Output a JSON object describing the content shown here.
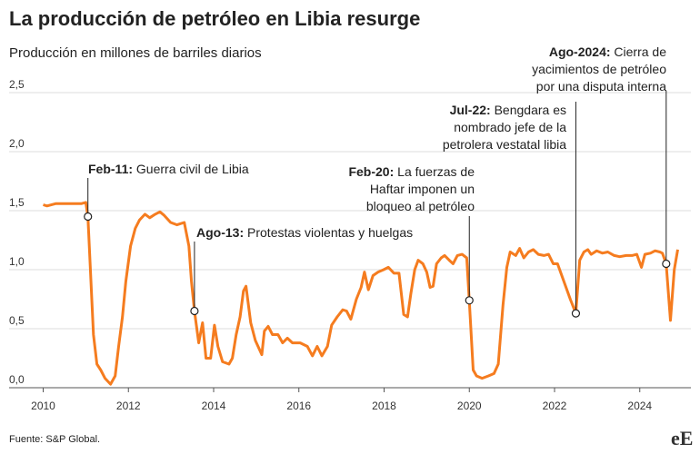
{
  "chart_data": {
    "type": "line",
    "title": "La producción de petróleo en Libia resurge",
    "subtitle": "Producción en millones de barriles diarios",
    "source": "Fuente: S&P Global.",
    "logo": "eE",
    "xlim": [
      2009.2,
      2025.2
    ],
    "xticks": [
      2010,
      2012,
      2014,
      2016,
      2018,
      2020,
      2022,
      2024
    ],
    "ylim": [
      0,
      2.5
    ],
    "yticks": [
      {
        "value": 0,
        "label": "0,0"
      },
      {
        "value": 0.5,
        "label": "0,5"
      },
      {
        "value": 1,
        "label": "1,0"
      },
      {
        "value": 1.5,
        "label": "1,5"
      },
      {
        "value": 2,
        "label": "2,0"
      },
      {
        "value": 2.5,
        "label": "2,5"
      }
    ],
    "grid": true,
    "series": [
      {
        "color": "#f57c1f",
        "x": [
          2010.0,
          2010.09,
          2010.3,
          2010.6,
          2010.9,
          2011.0,
          2011.05,
          2011.18,
          2011.26,
          2011.35,
          2011.45,
          2011.58,
          2011.69,
          2011.77,
          2011.86,
          2011.94,
          2012.05,
          2012.16,
          2012.26,
          2012.39,
          2012.5,
          2012.63,
          2012.74,
          2012.84,
          2012.99,
          2013.14,
          2013.31,
          2013.42,
          2013.48,
          2013.55,
          2013.65,
          2013.74,
          2013.82,
          2013.93,
          2014.02,
          2014.1,
          2014.21,
          2014.36,
          2014.44,
          2014.53,
          2014.62,
          2014.7,
          2014.76,
          2014.87,
          2014.98,
          2015.13,
          2015.19,
          2015.28,
          2015.38,
          2015.51,
          2015.62,
          2015.73,
          2015.85,
          2016.03,
          2016.2,
          2016.32,
          2016.43,
          2016.54,
          2016.67,
          2016.77,
          2016.9,
          2017.03,
          2017.12,
          2017.22,
          2017.35,
          2017.46,
          2017.54,
          2017.63,
          2017.74,
          2017.86,
          2017.99,
          2018.1,
          2018.23,
          2018.35,
          2018.46,
          2018.55,
          2018.63,
          2018.72,
          2018.8,
          2018.91,
          2019.0,
          2019.08,
          2019.15,
          2019.23,
          2019.34,
          2019.42,
          2019.53,
          2019.62,
          2019.72,
          2019.83,
          2019.94,
          2020.0,
          2020.09,
          2020.17,
          2020.3,
          2020.45,
          2020.58,
          2020.68,
          2020.79,
          2020.88,
          2020.96,
          2021.09,
          2021.18,
          2021.28,
          2021.39,
          2021.5,
          2021.62,
          2021.75,
          2021.86,
          2021.97,
          2022.07,
          2022.22,
          2022.37,
          2022.5,
          2022.59,
          2022.69,
          2022.78,
          2022.86,
          2022.99,
          2023.12,
          2023.25,
          2023.4,
          2023.53,
          2023.68,
          2023.82,
          2023.93,
          2024.04,
          2024.12,
          2024.25,
          2024.36,
          2024.47,
          2024.53,
          2024.62,
          2024.72,
          2024.81,
          2024.89
        ],
        "values": [
          1.55,
          1.54,
          1.56,
          1.56,
          1.56,
          1.57,
          1.45,
          0.45,
          0.2,
          0.15,
          0.08,
          0.03,
          0.1,
          0.35,
          0.6,
          0.9,
          1.2,
          1.35,
          1.42,
          1.47,
          1.44,
          1.47,
          1.49,
          1.46,
          1.4,
          1.38,
          1.4,
          1.2,
          0.9,
          0.65,
          0.38,
          0.55,
          0.25,
          0.25,
          0.53,
          0.35,
          0.22,
          0.2,
          0.25,
          0.45,
          0.6,
          0.82,
          0.86,
          0.55,
          0.4,
          0.28,
          0.48,
          0.52,
          0.45,
          0.45,
          0.38,
          0.42,
          0.38,
          0.38,
          0.35,
          0.27,
          0.35,
          0.27,
          0.35,
          0.53,
          0.6,
          0.66,
          0.65,
          0.58,
          0.75,
          0.85,
          0.98,
          0.83,
          0.95,
          0.98,
          1.0,
          1.02,
          0.97,
          0.97,
          0.62,
          0.6,
          0.8,
          1.0,
          1.08,
          1.05,
          0.98,
          0.85,
          0.86,
          1.05,
          1.1,
          1.12,
          1.08,
          1.05,
          1.12,
          1.13,
          1.1,
          0.74,
          0.15,
          0.1,
          0.08,
          0.1,
          0.12,
          0.2,
          0.7,
          1.02,
          1.15,
          1.12,
          1.18,
          1.1,
          1.15,
          1.17,
          1.13,
          1.12,
          1.13,
          1.05,
          1.05,
          0.9,
          0.75,
          0.63,
          1.08,
          1.15,
          1.17,
          1.13,
          1.16,
          1.14,
          1.15,
          1.12,
          1.11,
          1.12,
          1.12,
          1.13,
          1.02,
          1.13,
          1.14,
          1.16,
          1.15,
          1.14,
          1.05,
          0.57,
          1.0,
          1.17
        ]
      }
    ],
    "annotations": [
      {
        "bold": "Feb-11:",
        "lines": [
          " Guerra civil de Libia"
        ],
        "x": 2011.05,
        "y": 1.45
      },
      {
        "bold": "Ago-13:",
        "lines": [
          " Protestas violentas y huelgas"
        ],
        "x": 2013.55,
        "y": 0.65
      },
      {
        "bold": "Feb-20:",
        "lines": [
          " La fuerzas de",
          "Haftar imponen un",
          "bloqueo al petróleo"
        ],
        "x": 2020.0,
        "y": 0.74
      },
      {
        "bold": "Jul-22:",
        "lines": [
          " Bengdara es",
          "nombrado jefe de la",
          "petrolera vestatal libia"
        ],
        "x": 2022.5,
        "y": 0.63
      },
      {
        "bold": "Ago-2024:",
        "lines": [
          " Cierra de",
          "yacimientos de petróleo",
          "por una disputa interna"
        ],
        "x": 2024.62,
        "y": 1.05
      }
    ]
  }
}
